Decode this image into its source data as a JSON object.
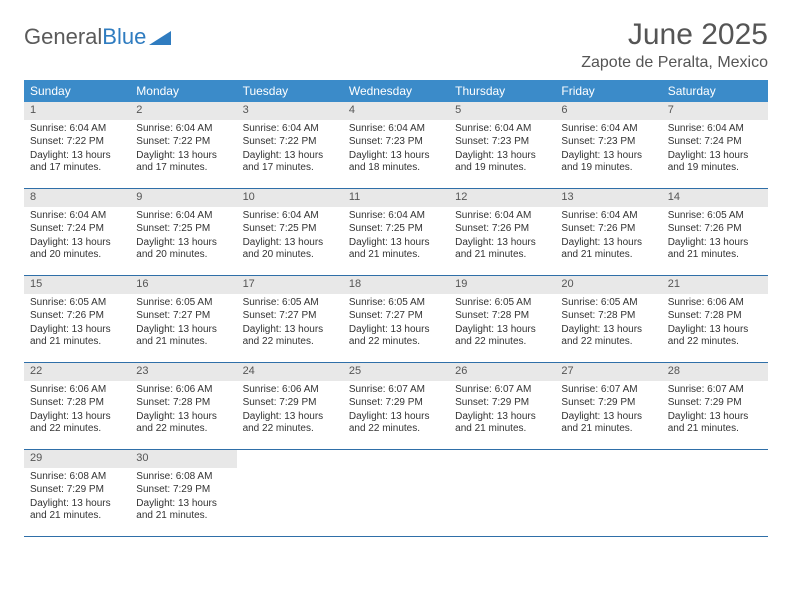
{
  "logo": {
    "text1": "General",
    "text2": "Blue"
  },
  "header": {
    "month": "June 2025",
    "location": "Zapote de Peralta, Mexico"
  },
  "colors": {
    "header_bg": "#3b8bc9",
    "header_text": "#ffffff",
    "daynum_bg": "#e8e8e8",
    "week_border": "#2f6fa8",
    "logo_gray": "#5a5a5a",
    "logo_blue": "#2f7cc0"
  },
  "dayNames": [
    "Sunday",
    "Monday",
    "Tuesday",
    "Wednesday",
    "Thursday",
    "Friday",
    "Saturday"
  ],
  "weeks": [
    [
      {
        "n": "1",
        "sr": "6:04 AM",
        "ss": "7:22 PM",
        "dl": "13 hours and 17 minutes."
      },
      {
        "n": "2",
        "sr": "6:04 AM",
        "ss": "7:22 PM",
        "dl": "13 hours and 17 minutes."
      },
      {
        "n": "3",
        "sr": "6:04 AM",
        "ss": "7:22 PM",
        "dl": "13 hours and 17 minutes."
      },
      {
        "n": "4",
        "sr": "6:04 AM",
        "ss": "7:23 PM",
        "dl": "13 hours and 18 minutes."
      },
      {
        "n": "5",
        "sr": "6:04 AM",
        "ss": "7:23 PM",
        "dl": "13 hours and 19 minutes."
      },
      {
        "n": "6",
        "sr": "6:04 AM",
        "ss": "7:23 PM",
        "dl": "13 hours and 19 minutes."
      },
      {
        "n": "7",
        "sr": "6:04 AM",
        "ss": "7:24 PM",
        "dl": "13 hours and 19 minutes."
      }
    ],
    [
      {
        "n": "8",
        "sr": "6:04 AM",
        "ss": "7:24 PM",
        "dl": "13 hours and 20 minutes."
      },
      {
        "n": "9",
        "sr": "6:04 AM",
        "ss": "7:25 PM",
        "dl": "13 hours and 20 minutes."
      },
      {
        "n": "10",
        "sr": "6:04 AM",
        "ss": "7:25 PM",
        "dl": "13 hours and 20 minutes."
      },
      {
        "n": "11",
        "sr": "6:04 AM",
        "ss": "7:25 PM",
        "dl": "13 hours and 21 minutes."
      },
      {
        "n": "12",
        "sr": "6:04 AM",
        "ss": "7:26 PM",
        "dl": "13 hours and 21 minutes."
      },
      {
        "n": "13",
        "sr": "6:04 AM",
        "ss": "7:26 PM",
        "dl": "13 hours and 21 minutes."
      },
      {
        "n": "14",
        "sr": "6:05 AM",
        "ss": "7:26 PM",
        "dl": "13 hours and 21 minutes."
      }
    ],
    [
      {
        "n": "15",
        "sr": "6:05 AM",
        "ss": "7:26 PM",
        "dl": "13 hours and 21 minutes."
      },
      {
        "n": "16",
        "sr": "6:05 AM",
        "ss": "7:27 PM",
        "dl": "13 hours and 21 minutes."
      },
      {
        "n": "17",
        "sr": "6:05 AM",
        "ss": "7:27 PM",
        "dl": "13 hours and 22 minutes."
      },
      {
        "n": "18",
        "sr": "6:05 AM",
        "ss": "7:27 PM",
        "dl": "13 hours and 22 minutes."
      },
      {
        "n": "19",
        "sr": "6:05 AM",
        "ss": "7:28 PM",
        "dl": "13 hours and 22 minutes."
      },
      {
        "n": "20",
        "sr": "6:05 AM",
        "ss": "7:28 PM",
        "dl": "13 hours and 22 minutes."
      },
      {
        "n": "21",
        "sr": "6:06 AM",
        "ss": "7:28 PM",
        "dl": "13 hours and 22 minutes."
      }
    ],
    [
      {
        "n": "22",
        "sr": "6:06 AM",
        "ss": "7:28 PM",
        "dl": "13 hours and 22 minutes."
      },
      {
        "n": "23",
        "sr": "6:06 AM",
        "ss": "7:28 PM",
        "dl": "13 hours and 22 minutes."
      },
      {
        "n": "24",
        "sr": "6:06 AM",
        "ss": "7:29 PM",
        "dl": "13 hours and 22 minutes."
      },
      {
        "n": "25",
        "sr": "6:07 AM",
        "ss": "7:29 PM",
        "dl": "13 hours and 22 minutes."
      },
      {
        "n": "26",
        "sr": "6:07 AM",
        "ss": "7:29 PM",
        "dl": "13 hours and 21 minutes."
      },
      {
        "n": "27",
        "sr": "6:07 AM",
        "ss": "7:29 PM",
        "dl": "13 hours and 21 minutes."
      },
      {
        "n": "28",
        "sr": "6:07 AM",
        "ss": "7:29 PM",
        "dl": "13 hours and 21 minutes."
      }
    ],
    [
      {
        "n": "29",
        "sr": "6:08 AM",
        "ss": "7:29 PM",
        "dl": "13 hours and 21 minutes."
      },
      {
        "n": "30",
        "sr": "6:08 AM",
        "ss": "7:29 PM",
        "dl": "13 hours and 21 minutes."
      },
      null,
      null,
      null,
      null,
      null
    ]
  ],
  "labels": {
    "sunrise": "Sunrise: ",
    "sunset": "Sunset: ",
    "daylight": "Daylight: "
  }
}
